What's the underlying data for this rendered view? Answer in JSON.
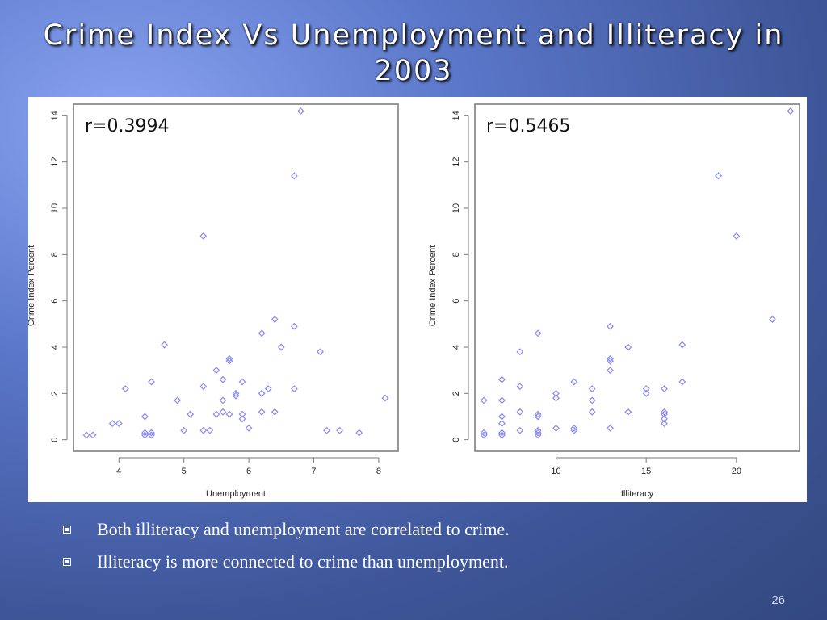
{
  "slide": {
    "title": "Crime Index Vs Unemployment and Illiteracy in 2003",
    "bullets": [
      "Both illiteracy and unemployment are correlated to crime.",
      "Illiteracy is more connected to crime than unemployment."
    ],
    "page_number": "26"
  },
  "colors": {
    "point": "#8a8af0",
    "frame": "#777777",
    "text": "#222222"
  },
  "chart_data": [
    {
      "type": "scatter",
      "annotation": "r=0.3994",
      "xlabel": "Unemployment",
      "ylabel": "Crime Index Percent",
      "xlim": [
        3.3,
        8.3
      ],
      "ylim": [
        -0.5,
        14.5
      ],
      "xticks": [
        4,
        5,
        6,
        7,
        8
      ],
      "yticks": [
        0,
        2,
        4,
        6,
        8,
        10,
        12,
        14
      ],
      "points": [
        [
          3.5,
          0.2
        ],
        [
          3.6,
          0.2
        ],
        [
          3.9,
          0.7
        ],
        [
          4.0,
          0.7
        ],
        [
          4.1,
          2.2
        ],
        [
          4.4,
          1.0
        ],
        [
          4.4,
          0.3
        ],
        [
          4.4,
          0.2
        ],
        [
          4.5,
          0.3
        ],
        [
          4.5,
          0.2
        ],
        [
          4.5,
          2.5
        ],
        [
          4.7,
          4.1
        ],
        [
          4.9,
          1.7
        ],
        [
          5.0,
          0.4
        ],
        [
          5.1,
          1.1
        ],
        [
          5.3,
          8.8
        ],
        [
          5.3,
          2.3
        ],
        [
          5.3,
          0.4
        ],
        [
          5.4,
          0.4
        ],
        [
          5.5,
          1.1
        ],
        [
          5.5,
          3.0
        ],
        [
          5.6,
          2.6
        ],
        [
          5.6,
          1.7
        ],
        [
          5.6,
          1.2
        ],
        [
          5.7,
          3.5
        ],
        [
          5.7,
          3.4
        ],
        [
          5.7,
          1.1
        ],
        [
          5.8,
          2.0
        ],
        [
          5.8,
          1.9
        ],
        [
          5.9,
          2.5
        ],
        [
          5.9,
          1.1
        ],
        [
          5.9,
          0.9
        ],
        [
          6.0,
          0.5
        ],
        [
          6.2,
          4.6
        ],
        [
          6.2,
          2.0
        ],
        [
          6.2,
          1.2
        ],
        [
          6.3,
          2.2
        ],
        [
          6.4,
          5.2
        ],
        [
          6.4,
          1.2
        ],
        [
          6.5,
          4.0
        ],
        [
          6.7,
          11.4
        ],
        [
          6.7,
          4.9
        ],
        [
          6.7,
          2.2
        ],
        [
          6.8,
          14.2
        ],
        [
          7.1,
          3.8
        ],
        [
          7.2,
          0.4
        ],
        [
          7.4,
          0.4
        ],
        [
          7.7,
          0.3
        ],
        [
          8.1,
          1.8
        ]
      ]
    },
    {
      "type": "scatter",
      "annotation": "r=0.5465",
      "xlabel": "Illiteracy",
      "ylabel": "Crime Index Percent",
      "xlim": [
        5.5,
        23.5
      ],
      "ylim": [
        -0.5,
        14.5
      ],
      "xticks": [
        10,
        15,
        20
      ],
      "yticks": [
        0,
        2,
        4,
        6,
        8,
        10,
        12,
        14
      ],
      "points": [
        [
          6,
          1.7
        ],
        [
          6,
          0.3
        ],
        [
          6,
          0.2
        ],
        [
          7,
          2.6
        ],
        [
          7,
          1.7
        ],
        [
          7,
          1.0
        ],
        [
          7,
          0.7
        ],
        [
          7,
          0.3
        ],
        [
          7,
          0.2
        ],
        [
          8,
          3.8
        ],
        [
          8,
          2.3
        ],
        [
          8,
          1.2
        ],
        [
          8,
          0.4
        ],
        [
          9,
          4.6
        ],
        [
          9,
          1.1
        ],
        [
          9,
          1.0
        ],
        [
          9,
          0.4
        ],
        [
          9,
          0.3
        ],
        [
          9,
          0.2
        ],
        [
          10,
          2.0
        ],
        [
          10,
          1.8
        ],
        [
          10,
          0.5
        ],
        [
          11,
          2.5
        ],
        [
          11,
          0.5
        ],
        [
          11,
          0.4
        ],
        [
          12,
          2.2
        ],
        [
          12,
          1.7
        ],
        [
          12,
          1.2
        ],
        [
          13,
          4.9
        ],
        [
          13,
          3.5
        ],
        [
          13,
          3.4
        ],
        [
          13,
          3.0
        ],
        [
          13,
          0.5
        ],
        [
          14,
          4.0
        ],
        [
          14,
          1.2
        ],
        [
          15,
          2.2
        ],
        [
          15,
          2.0
        ],
        [
          16,
          2.2
        ],
        [
          16,
          1.2
        ],
        [
          16,
          1.1
        ],
        [
          16,
          0.9
        ],
        [
          16,
          0.7
        ],
        [
          17,
          4.1
        ],
        [
          17,
          2.5
        ],
        [
          19,
          11.4
        ],
        [
          20,
          8.8
        ],
        [
          22,
          5.2
        ],
        [
          23,
          14.2
        ]
      ]
    }
  ]
}
